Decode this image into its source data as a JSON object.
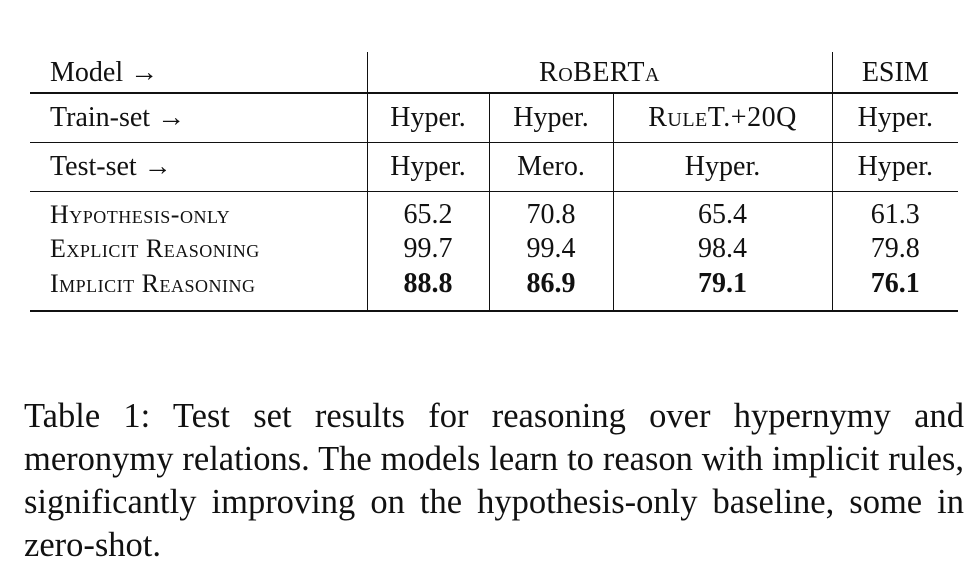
{
  "table": {
    "header_model": {
      "label": "Model →",
      "roberta": "RoBERTa",
      "esim": "ESIM"
    },
    "header_train": {
      "label": "Train-set →",
      "cols": [
        "Hyper.",
        "Hyper.",
        "RuleT.+20Q",
        "Hyper."
      ]
    },
    "header_test": {
      "label": "Test-set →",
      "cols": [
        "Hyper.",
        "Mero.",
        "Hyper.",
        "Hyper."
      ]
    },
    "rows": [
      {
        "label": "Hypothesis-only",
        "values": [
          "65.2",
          "70.8",
          "65.4",
          "61.3"
        ]
      },
      {
        "label": "Explicit Reasoning",
        "values": [
          "99.7",
          "99.4",
          "98.4",
          "79.8"
        ]
      },
      {
        "label": "Implicit Reasoning",
        "values": [
          "88.8",
          "86.9",
          "79.1",
          "76.1"
        ]
      }
    ]
  },
  "caption": "Table 1: Test set results for reasoning over hypernymy and meronymy relations. The models learn to reason with implicit rules, significantly improving on the hypothesis-only baseline, some in zero-shot."
}
